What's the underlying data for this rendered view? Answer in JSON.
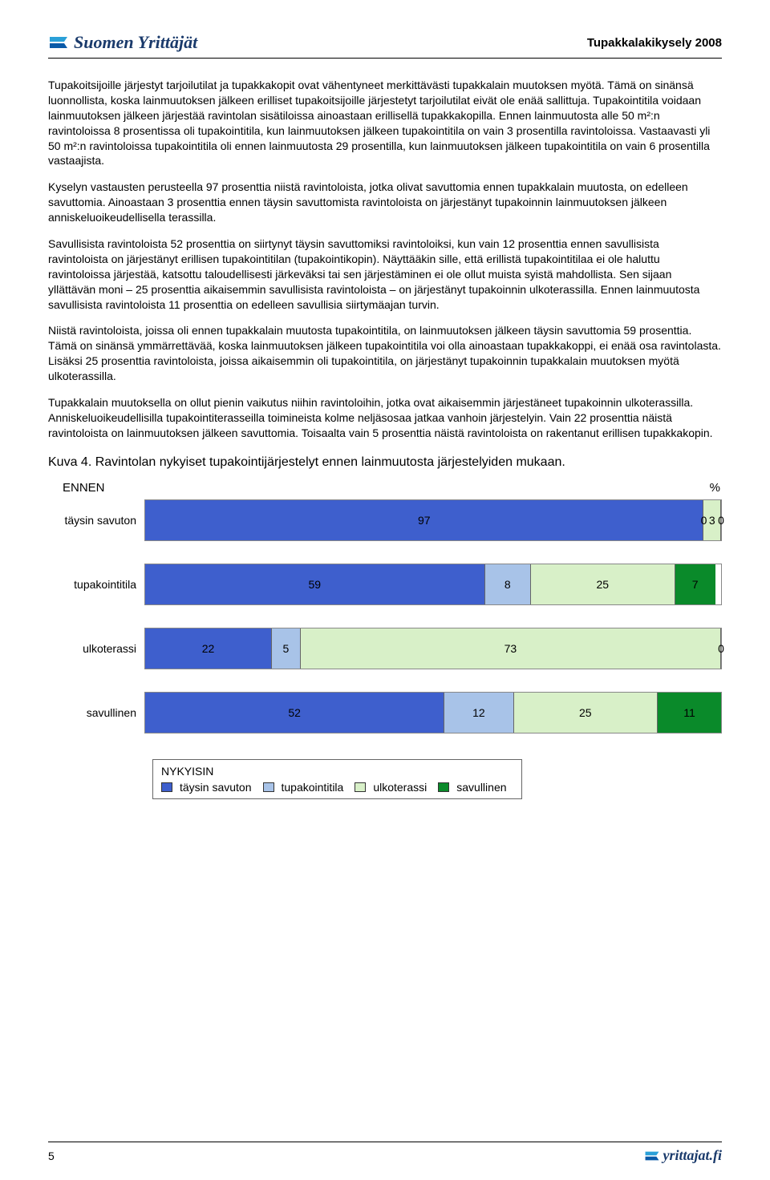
{
  "header": {
    "logo_text": "Suomen Yrittäjät",
    "survey_title": "Tupakkalakikysely 2008",
    "logo_colors": {
      "top": "#2aa0d8",
      "bottom": "#0a5aa8"
    }
  },
  "paragraphs": {
    "p1": "Tupakoitsijoille järjestyt tarjoilutilat ja tupakkakopit ovat vähentyneet merkittävästi tupakkalain muutoksen myötä. Tämä on sinänsä luonnollista, koska lainmuutoksen jälkeen erilliset tupakoitsijoille järjestetyt tarjoilutilat eivät ole enää sallittuja. Tupakointitila voidaan lainmuutoksen jälkeen järjestää ravintolan sisätiloissa ainoastaan erillisellä tupakkakopilla. Ennen lainmuutosta alle 50 m²:n ravintoloissa 8 prosentissa oli tupakointitila, kun lainmuutoksen jälkeen tupakointitila on vain 3 prosentilla ravintoloissa. Vastaavasti yli 50 m²:n ravintoloissa tupakointitila oli ennen lainmuutosta 29 prosentilla, kun lainmuutoksen jälkeen tupakointitila on vain 6 prosentilla vastaajista.",
    "p2": "Kyselyn vastausten perusteella 97 prosenttia niistä ravintoloista, jotka olivat savuttomia ennen tupakkalain muutosta, on edelleen savuttomia. Ainoastaan 3 prosenttia ennen täysin savuttomista ravintoloista on järjestänyt tupakoinnin lainmuutoksen jälkeen anniskeluoikeudellisella terassilla.",
    "p3": "Savullisista ravintoloista 52 prosenttia on siirtynyt täysin savuttomiksi ravintoloiksi, kun vain 12 prosenttia ennen savullisista ravintoloista on järjestänyt erillisen tupakointitilan (tupakointikopin). Näyttääkin sille, että erillistä tupakointitilaa ei ole haluttu ravintoloissa järjestää, katsottu taloudellisesti järkeväksi tai sen järjestäminen ei ole ollut muista syistä mahdollista. Sen sijaan yllättävän moni – 25 prosenttia aikaisemmin savullisista ravintoloista – on järjestänyt tupakoinnin ulkoterassilla. Ennen lainmuutosta savullisista ravintoloista 11 prosenttia on edelleen savullisia siirtymäajan turvin.",
    "p4": "Niistä ravintoloista, joissa oli ennen tupakkalain muutosta tupakointitila, on lainmuutoksen jälkeen täysin savuttomia 59 prosenttia. Tämä on sinänsä ymmärrettävää, koska lainmuutoksen jälkeen tupakointitila voi olla ainoastaan tupakkakoppi, ei enää osa ravintolasta. Lisäksi 25 prosenttia ravintoloista, joissa aikaisemmin oli tupakointitila, on järjestänyt tupakoinnin tupakkalain muutoksen myötä ulkoterassilla.",
    "p5": "Tupakkalain muutoksella on ollut pienin vaikutus niihin ravintoloihin, jotka ovat aikaisemmin järjestäneet tupakoinnin ulkoterassilla. Anniskeluoikeudellisilla tupakointiterasseilla toimineista kolme neljäsosaa jatkaa vanhoin järjestelyin. Vain 22 prosenttia näistä ravintoloista on lainmuutoksen jälkeen savuttomia. Toisaalta vain 5 prosenttia näistä ravintoloista on rakentanut erillisen tupakkakopin."
  },
  "figure_caption": "Kuva 4. Ravintolan nykyiset tupakointijärjestelyt ennen lainmuutosta järjestelyiden mukaan.",
  "chart": {
    "type": "stacked-bar-horizontal",
    "ennen_label": "ENNEN",
    "pct_symbol": "%",
    "colors": {
      "taysin_savuton": "#3e5fcd",
      "tupakointitila": "#a8c3e8",
      "ulkoterassi": "#d8f0c8",
      "savullinen": "#0a8a2a"
    },
    "rows": [
      {
        "label": "täysin savuton",
        "segments": [
          {
            "key": "taysin_savuton",
            "value": 97,
            "show": "97"
          },
          {
            "key": "tupakointitila",
            "value": 0,
            "show": "0"
          },
          {
            "key": "ulkoterassi",
            "value": 3,
            "show": "3"
          },
          {
            "key": "savullinen",
            "value": 0,
            "show": "0"
          }
        ]
      },
      {
        "label": "tupakointitila",
        "segments": [
          {
            "key": "taysin_savuton",
            "value": 59,
            "show": "59"
          },
          {
            "key": "tupakointitila",
            "value": 8,
            "show": "8"
          },
          {
            "key": "ulkoterassi",
            "value": 25,
            "show": "25"
          },
          {
            "key": "savullinen",
            "value": 7,
            "show": "7"
          }
        ]
      },
      {
        "label": "ulkoterassi",
        "segments": [
          {
            "key": "taysin_savuton",
            "value": 22,
            "show": "22"
          },
          {
            "key": "tupakointitila",
            "value": 5,
            "show": "5"
          },
          {
            "key": "ulkoterassi",
            "value": 73,
            "show": "73"
          },
          {
            "key": "savullinen",
            "value": 0,
            "show": "0"
          }
        ]
      },
      {
        "label": "savullinen",
        "segments": [
          {
            "key": "taysin_savuton",
            "value": 52,
            "show": "52"
          },
          {
            "key": "tupakointitila",
            "value": 12,
            "show": "12"
          },
          {
            "key": "ulkoterassi",
            "value": 25,
            "show": "25"
          },
          {
            "key": "savullinen",
            "value": 11,
            "show": "11"
          }
        ]
      }
    ],
    "legend": {
      "title": "NYKYISIN",
      "items": [
        {
          "key": "taysin_savuton",
          "label": "täysin savuton"
        },
        {
          "key": "tupakointitila",
          "label": "tupakointitila"
        },
        {
          "key": "ulkoterassi",
          "label": "ulkoterassi"
        },
        {
          "key": "savullinen",
          "label": "savullinen"
        }
      ]
    }
  },
  "footer": {
    "page_number": "5",
    "site": "yrittajat.fi"
  }
}
